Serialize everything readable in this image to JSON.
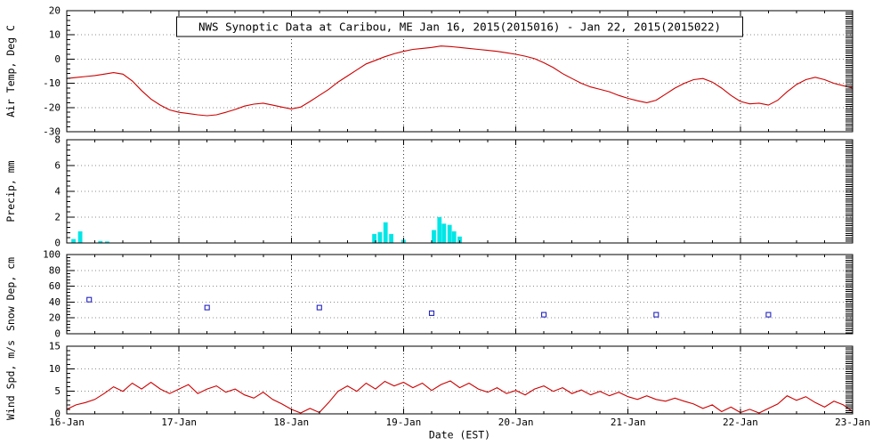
{
  "chart_data": {
    "type": "line",
    "title": "NWS Synoptic Data at Caribou, ME  Jan 16, 2015(2015016) - Jan 22, 2015(2015022)",
    "xlabel": "Date (EST)",
    "x_range": [
      16,
      23
    ],
    "x_tick_labels": [
      "16-Jan",
      "17-Jan",
      "18-Jan",
      "19-Jan",
      "20-Jan",
      "21-Jan",
      "22-Jan",
      "23-Jan"
    ],
    "grid": "dotted",
    "legend": "none",
    "panels": [
      {
        "name": "air-temp",
        "type": "line",
        "ylabel": "Air Temp, Deg C",
        "ylim": [
          -30,
          20
        ],
        "yticks": [
          -30,
          -20,
          -10,
          0,
          10,
          20
        ],
        "color": "#cc0000",
        "x_start": 16,
        "x_step": 0.0833333,
        "values": [
          -8,
          -7.6,
          -7.2,
          -6.8,
          -6.2,
          -5.6,
          -6.2,
          -9,
          -13,
          -16.5,
          -19,
          -21,
          -22,
          -22.5,
          -23,
          -23.4,
          -23,
          -22,
          -20.8,
          -19.4,
          -18.6,
          -18.2,
          -19,
          -19.8,
          -20.6,
          -19.8,
          -17.5,
          -15,
          -12.5,
          -9.5,
          -7,
          -4.5,
          -2,
          -0.5,
          1,
          2.2,
          3.2,
          4,
          4.4,
          4.8,
          5.4,
          5.2,
          4.8,
          4.4,
          4,
          3.6,
          3.2,
          2.6,
          2,
          1.2,
          0.2,
          -1.5,
          -3.5,
          -6,
          -8,
          -10,
          -11.5,
          -12.5,
          -13.5,
          -15,
          -16.2,
          -17.2,
          -18,
          -17,
          -14.5,
          -12,
          -10,
          -8.5,
          -8,
          -9.5,
          -12,
          -15,
          -17.5,
          -18.5,
          -18.2,
          -19,
          -17,
          -13.5,
          -10.5,
          -8.5,
          -7.5,
          -8.5,
          -10,
          -11,
          -12
        ]
      },
      {
        "name": "precip",
        "type": "bar",
        "ylabel": "Precip, mm",
        "ylim": [
          0,
          8
        ],
        "yticks": [
          0,
          2,
          4,
          6,
          8
        ],
        "color": "#00e6e6",
        "bar_width_days": 0.038,
        "points": [
          [
            16.06,
            0.3
          ],
          [
            16.12,
            0.9
          ],
          [
            16.3,
            0.15
          ],
          [
            16.36,
            0.12
          ],
          [
            18.74,
            0.7
          ],
          [
            18.79,
            0.85
          ],
          [
            18.84,
            1.6
          ],
          [
            18.89,
            0.7
          ],
          [
            19.0,
            0.25
          ],
          [
            19.27,
            1.0
          ],
          [
            19.32,
            2.0
          ],
          [
            19.36,
            1.5
          ],
          [
            19.41,
            1.4
          ],
          [
            19.45,
            0.9
          ],
          [
            19.5,
            0.5
          ]
        ]
      },
      {
        "name": "snow-depth",
        "type": "scatter",
        "ylabel": "Snow Dep, cm",
        "ylim": [
          0,
          100
        ],
        "yticks": [
          0,
          20,
          40,
          60,
          80,
          100
        ],
        "color": "#2424c0",
        "points": [
          [
            16.2,
            43
          ],
          [
            17.25,
            33
          ],
          [
            18.25,
            33
          ],
          [
            19.25,
            26
          ],
          [
            20.25,
            24
          ],
          [
            21.25,
            24
          ],
          [
            22.25,
            24
          ]
        ]
      },
      {
        "name": "wind-speed",
        "type": "line",
        "ylabel": "Wind Spd, m/s",
        "ylim": [
          0,
          15
        ],
        "yticks": [
          0,
          5,
          10,
          15
        ],
        "color": "#cc0000",
        "x_start": 16,
        "x_step": 0.0833333,
        "values": [
          1,
          2,
          2.5,
          3.2,
          4.5,
          6,
          5,
          6.8,
          5.5,
          7,
          5.5,
          4.5,
          5.5,
          6.5,
          4.5,
          5.5,
          6.2,
          4.8,
          5.5,
          4.2,
          3.5,
          4.8,
          3.2,
          2.2,
          1,
          0.2,
          1.2,
          0.3,
          2.5,
          5,
          6.2,
          5,
          6.8,
          5.5,
          7.2,
          6.2,
          7,
          5.8,
          6.8,
          5.2,
          6.5,
          7.3,
          5.8,
          6.8,
          5.5,
          4.8,
          5.8,
          4.5,
          5.2,
          4.2,
          5.5,
          6.2,
          5,
          5.8,
          4.5,
          5.3,
          4.2,
          5,
          4,
          4.8,
          3.8,
          3.2,
          4,
          3.2,
          2.8,
          3.5,
          2.8,
          2.2,
          1.2,
          2,
          0.5,
          1.5,
          0.3,
          1,
          0.2,
          1.2,
          2.2,
          4,
          3,
          3.8,
          2.5,
          1.5,
          2.8,
          2,
          0.5
        ]
      }
    ]
  }
}
